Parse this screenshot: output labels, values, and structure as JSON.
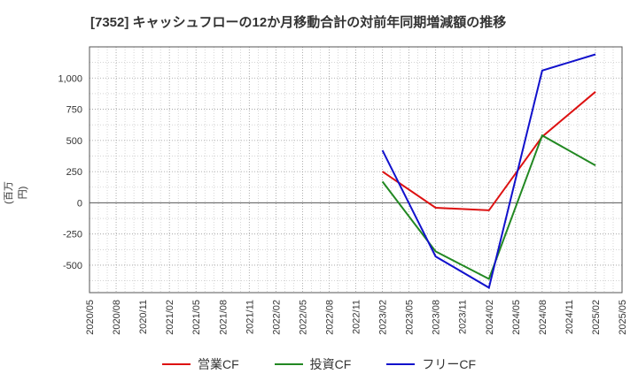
{
  "chart_data": {
    "type": "line",
    "title": "[7352]  キャッシュフローの12か月移動合計の対前年同期増減額の推移",
    "xlabel": "",
    "ylabel": "(百万円)",
    "ylim": [
      -720,
      1250
    ],
    "yticks": [
      -500,
      -250,
      0,
      250,
      500,
      750,
      1000
    ],
    "ytick_labels": [
      "-500",
      "-250",
      "0",
      "250",
      "500",
      "750",
      "1,000"
    ],
    "categories": [
      "2020/05",
      "2020/08",
      "2020/11",
      "2021/02",
      "2021/05",
      "2021/08",
      "2021/11",
      "2022/02",
      "2022/05",
      "2022/08",
      "2022/11",
      "2023/02",
      "2023/05",
      "2023/08",
      "2023/11",
      "2024/02",
      "2024/05",
      "2024/08",
      "2024/11",
      "2025/02",
      "2025/05"
    ],
    "grid": true,
    "legend_position": "bottom",
    "series": [
      {
        "name": "営業CF",
        "color": "#dd1111",
        "points": [
          [
            "2023/02",
            250
          ],
          [
            "2023/08",
            -40
          ],
          [
            "2024/02",
            -60
          ],
          [
            "2024/08",
            530
          ],
          [
            "2025/02",
            890
          ]
        ]
      },
      {
        "name": "投資CF",
        "color": "#228822",
        "points": [
          [
            "2023/02",
            170
          ],
          [
            "2023/08",
            -390
          ],
          [
            "2024/02",
            -610
          ],
          [
            "2024/08",
            540
          ],
          [
            "2025/02",
            300
          ]
        ]
      },
      {
        "name": "フリーCF",
        "color": "#1111cc",
        "points": [
          [
            "2023/02",
            420
          ],
          [
            "2023/08",
            -430
          ],
          [
            "2024/02",
            -680
          ],
          [
            "2024/08",
            1060
          ],
          [
            "2025/02",
            1190
          ]
        ]
      }
    ]
  }
}
